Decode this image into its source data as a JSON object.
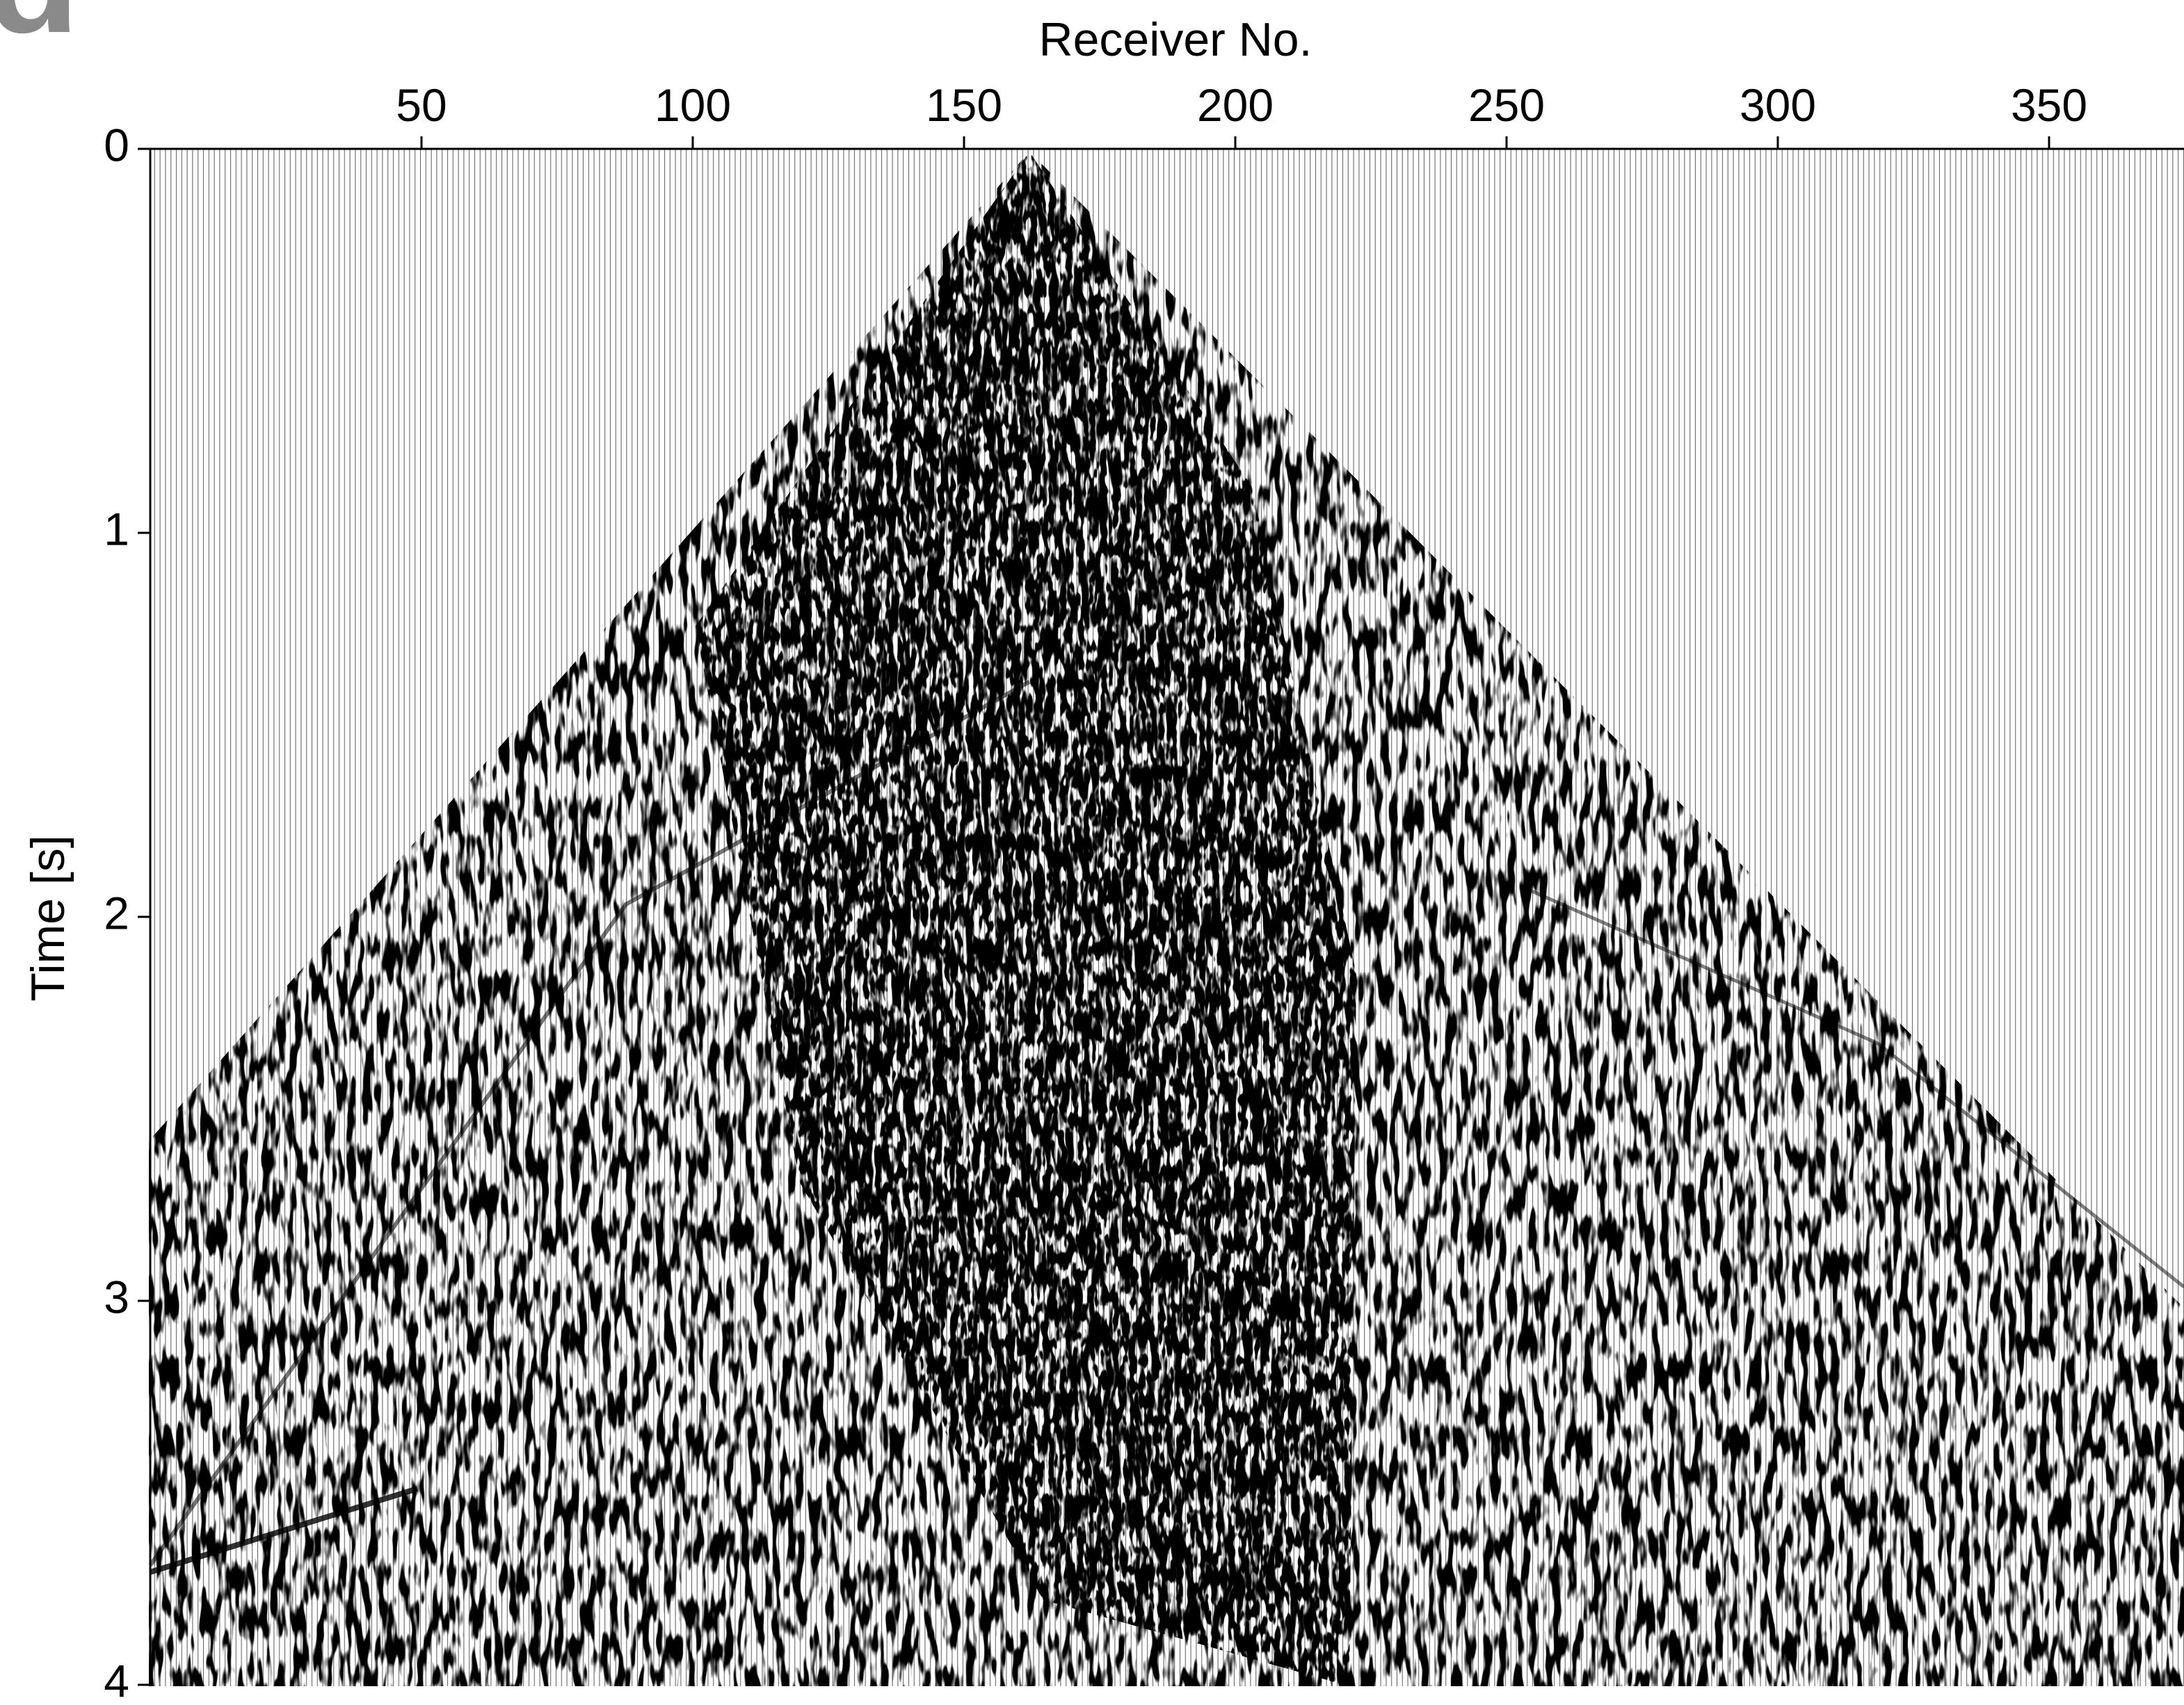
{
  "panel_label": "d",
  "chart_data": {
    "type": "seismic",
    "x_label": "Receiver No.",
    "y_label": "Time [s]",
    "x_axis_position": "top",
    "y_inverted": true,
    "xlim": [
      0,
      374
    ],
    "xticks": [
      50,
      100,
      150,
      200,
      250,
      300,
      350
    ],
    "ylim": [
      0,
      4
    ],
    "yticks": [
      0,
      1,
      2,
      3,
      4
    ]
  }
}
